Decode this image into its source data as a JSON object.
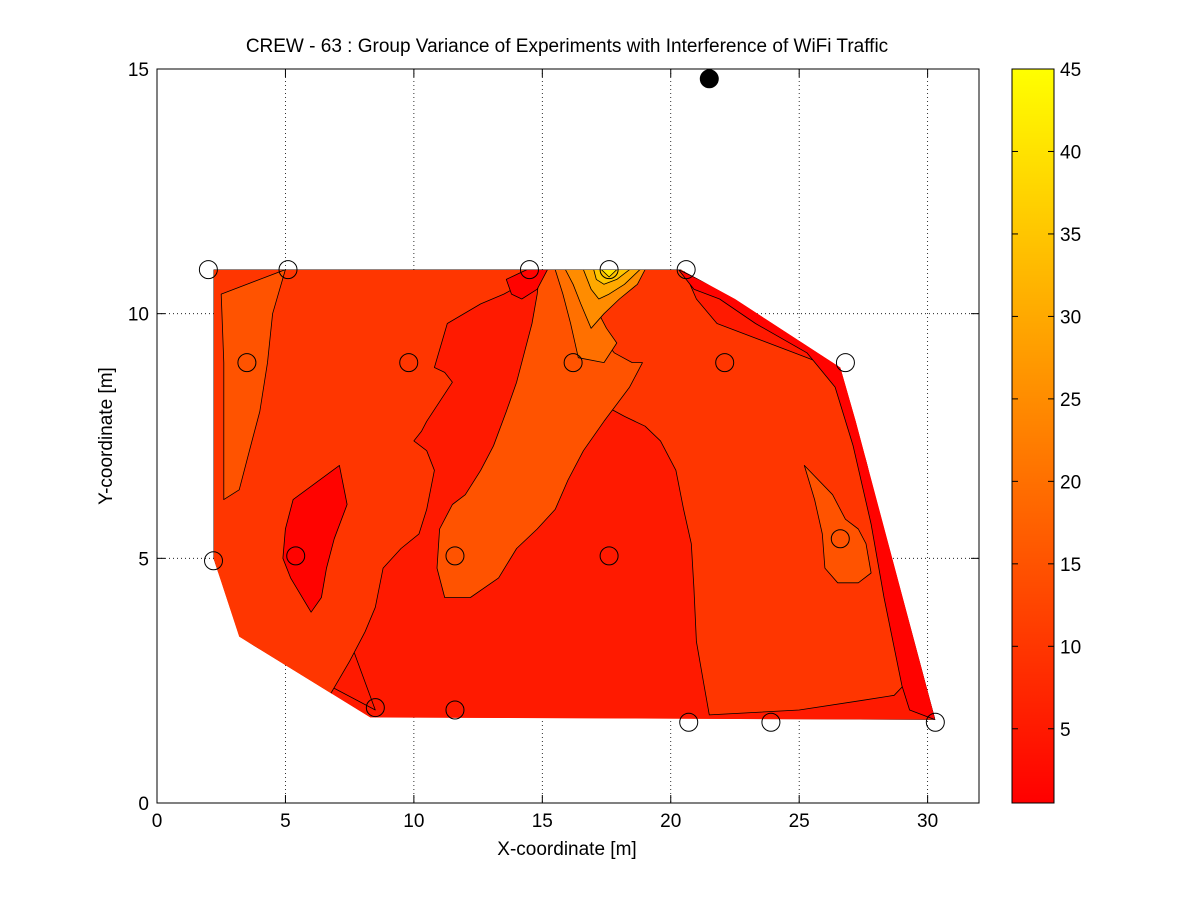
{
  "chart_data": {
    "type": "contour",
    "title": "CREW - 63 : Group Variance of Experiments with Interference of WiFi Traffic",
    "xlabel": "X-coordinate [m]",
    "ylabel": "Y-coordinate [m]",
    "xlim": [
      0,
      32
    ],
    "ylim": [
      0,
      15
    ],
    "xticks": [
      0,
      5,
      10,
      15,
      20,
      25,
      30
    ],
    "yticks": [
      0,
      5,
      10,
      15
    ],
    "grid": true,
    "colormap": "autumn",
    "colorbar": {
      "range": [
        0.5,
        45
      ],
      "ticks": [
        5,
        10,
        15,
        20,
        25,
        30,
        35,
        40,
        45
      ],
      "colors": {
        "low": "#ff0000",
        "high": "#ffff00"
      }
    },
    "sensor_nodes": [
      {
        "x": 2.0,
        "y": 10.9
      },
      {
        "x": 5.1,
        "y": 10.9
      },
      {
        "x": 14.5,
        "y": 10.9
      },
      {
        "x": 17.6,
        "y": 10.9
      },
      {
        "x": 20.6,
        "y": 10.9
      },
      {
        "x": 3.5,
        "y": 9.0
      },
      {
        "x": 9.8,
        "y": 9.0
      },
      {
        "x": 16.2,
        "y": 9.0
      },
      {
        "x": 22.1,
        "y": 9.0
      },
      {
        "x": 26.8,
        "y": 9.0
      },
      {
        "x": 2.2,
        "y": 4.95
      },
      {
        "x": 5.4,
        "y": 5.05
      },
      {
        "x": 11.6,
        "y": 5.05
      },
      {
        "x": 17.6,
        "y": 5.05
      },
      {
        "x": 26.6,
        "y": 5.4
      },
      {
        "x": 8.5,
        "y": 1.95
      },
      {
        "x": 11.6,
        "y": 1.9
      },
      {
        "x": 20.7,
        "y": 1.65
      },
      {
        "x": 23.9,
        "y": 1.65
      },
      {
        "x": 30.3,
        "y": 1.65
      }
    ],
    "interferer": {
      "x": 21.5,
      "y": 14.8
    },
    "regions": [
      {
        "value": 5,
        "points": [
          [
            2.2,
            10.9
          ],
          [
            20.3,
            10.9
          ],
          [
            22.5,
            10.2
          ],
          [
            26.6,
            8.8
          ],
          [
            27.2,
            7.7
          ],
          [
            30.3,
            1.7
          ],
          [
            2.2,
            1.7
          ],
          [
            2.2,
            5.0
          ],
          [
            3.1,
            3.4
          ],
          [
            8.5,
            1.9
          ]
        ]
      },
      {
        "value": 10,
        "points": [
          [
            2.2,
            10.9
          ],
          [
            14.6,
            10.9
          ],
          [
            14.2,
            10.6
          ],
          [
            13.5,
            10.4
          ],
          [
            12.6,
            10.2
          ],
          [
            11.3,
            9.8
          ],
          [
            10.8,
            8.9
          ],
          [
            11.2,
            8.8
          ],
          [
            11.5,
            8.6
          ],
          [
            10.5,
            7.8
          ],
          [
            10.3,
            7.6
          ],
          [
            10.0,
            7.4
          ],
          [
            10.5,
            7.2
          ],
          [
            10.8,
            6.8
          ],
          [
            10.5,
            6.0
          ],
          [
            10.2,
            5.5
          ],
          [
            9.5,
            5.2
          ],
          [
            8.8,
            4.8
          ],
          [
            8.5,
            4.0
          ],
          [
            8.1,
            3.5
          ],
          [
            7.5,
            2.9
          ],
          [
            6.5,
            2.0
          ],
          [
            5.0,
            1.8
          ],
          [
            2.2,
            1.8
          ],
          [
            2.2,
            5.0
          ]
        ]
      },
      {
        "value": 10,
        "points": [
          [
            15.8,
            10.9
          ],
          [
            20.5,
            10.9
          ],
          [
            21.0,
            10.3
          ],
          [
            21.8,
            9.8
          ],
          [
            23.3,
            9.5
          ],
          [
            24.8,
            9.2
          ],
          [
            26.8,
            8.8
          ],
          [
            27.4,
            7.6
          ],
          [
            27.8,
            6.5
          ],
          [
            28.4,
            5.3
          ],
          [
            29.0,
            4.0
          ],
          [
            29.6,
            2.7
          ],
          [
            28.7,
            2.2
          ],
          [
            27.5,
            2.1
          ],
          [
            25.0,
            1.9
          ],
          [
            21.5,
            1.8
          ],
          [
            21.3,
            2.4
          ],
          [
            21.0,
            3.3
          ],
          [
            20.9,
            4.4
          ],
          [
            20.8,
            5.3
          ],
          [
            20.5,
            6.0
          ],
          [
            20.2,
            6.8
          ],
          [
            19.6,
            7.4
          ],
          [
            19.0,
            7.7
          ],
          [
            18.2,
            7.9
          ],
          [
            17.5,
            8.1
          ],
          [
            16.9,
            8.4
          ],
          [
            16.4,
            8.9
          ],
          [
            16.0,
            9.6
          ],
          [
            15.8,
            10.2
          ]
        ]
      },
      {
        "value": 15,
        "points": [
          [
            2.5,
            10.4
          ],
          [
            5.0,
            10.9
          ],
          [
            4.5,
            10.0
          ],
          [
            4.3,
            9.0
          ],
          [
            4.0,
            8.0
          ],
          [
            3.7,
            7.4
          ],
          [
            3.2,
            6.4
          ],
          [
            2.6,
            6.2
          ],
          [
            2.6,
            7.5
          ],
          [
            2.6,
            9.0
          ]
        ]
      },
      {
        "value": 15,
        "points": [
          [
            14.9,
            10.9
          ],
          [
            16.1,
            10.9
          ],
          [
            16.5,
            10.4
          ],
          [
            17.2,
            9.6
          ],
          [
            17.8,
            9.2
          ],
          [
            18.5,
            9.0
          ],
          [
            18.9,
            9.0
          ],
          [
            18.4,
            8.5
          ],
          [
            17.4,
            7.8
          ],
          [
            16.6,
            7.2
          ],
          [
            16.0,
            6.6
          ],
          [
            15.5,
            6.0
          ],
          [
            14.8,
            5.6
          ],
          [
            14.0,
            5.2
          ],
          [
            13.3,
            4.6
          ],
          [
            12.2,
            4.2
          ],
          [
            11.2,
            4.2
          ],
          [
            10.9,
            4.8
          ],
          [
            11.0,
            5.6
          ],
          [
            11.5,
            6.1
          ],
          [
            12.0,
            6.3
          ],
          [
            12.6,
            6.8
          ],
          [
            13.1,
            7.3
          ],
          [
            13.6,
            8.0
          ],
          [
            14.0,
            8.6
          ],
          [
            14.3,
            9.2
          ],
          [
            14.6,
            9.8
          ],
          [
            14.8,
            10.4
          ]
        ]
      },
      {
        "value": 15,
        "points": [
          [
            25.2,
            6.9
          ],
          [
            26.3,
            6.3
          ],
          [
            26.8,
            5.8
          ],
          [
            27.3,
            5.6
          ],
          [
            27.6,
            5.3
          ],
          [
            27.8,
            4.7
          ],
          [
            27.3,
            4.5
          ],
          [
            26.5,
            4.5
          ],
          [
            26.0,
            4.8
          ],
          [
            25.9,
            5.5
          ],
          [
            25.6,
            6.2
          ]
        ]
      },
      {
        "value": 20,
        "points": [
          [
            15.5,
            10.9
          ],
          [
            16.4,
            10.9
          ],
          [
            17.0,
            10.2
          ],
          [
            17.5,
            9.7
          ],
          [
            17.9,
            9.4
          ],
          [
            17.4,
            9.0
          ],
          [
            16.4,
            9.1
          ],
          [
            16.1,
            9.8
          ],
          [
            15.8,
            10.4
          ]
        ]
      },
      {
        "value": 25,
        "points": [
          [
            15.9,
            10.9
          ],
          [
            19.0,
            10.9
          ],
          [
            18.7,
            10.6
          ],
          [
            18.0,
            10.3
          ],
          [
            17.4,
            10.0
          ],
          [
            16.9,
            9.7
          ],
          [
            16.5,
            10.2
          ],
          [
            16.2,
            10.6
          ]
        ]
      },
      {
        "value": 30,
        "points": [
          [
            16.6,
            10.9
          ],
          [
            18.8,
            10.9
          ],
          [
            18.2,
            10.6
          ],
          [
            17.6,
            10.4
          ],
          [
            17.2,
            10.3
          ],
          [
            16.9,
            10.5
          ]
        ]
      },
      {
        "value": 35,
        "points": [
          [
            17.0,
            10.9
          ],
          [
            18.4,
            10.9
          ],
          [
            17.9,
            10.7
          ],
          [
            17.4,
            10.6
          ],
          [
            17.1,
            10.7
          ]
        ]
      },
      {
        "value": 40,
        "points": [
          [
            17.3,
            10.9
          ],
          [
            17.9,
            10.9
          ],
          [
            17.6,
            10.75
          ]
        ]
      },
      {
        "value": 1,
        "points": [
          [
            5.3,
            6.2
          ],
          [
            7.1,
            6.9
          ],
          [
            7.4,
            6.1
          ],
          [
            6.9,
            5.4
          ],
          [
            6.6,
            4.8
          ],
          [
            6.4,
            4.2
          ],
          [
            6.0,
            3.9
          ],
          [
            5.2,
            4.6
          ],
          [
            4.9,
            5.0
          ],
          [
            5.0,
            5.6
          ]
        ]
      },
      {
        "value": 1,
        "points": [
          [
            20.3,
            10.9
          ],
          [
            22.3,
            10.4
          ],
          [
            24.4,
            9.9
          ],
          [
            26.3,
            9.3
          ],
          [
            26.9,
            8.8
          ],
          [
            27.3,
            7.9
          ],
          [
            27.8,
            6.7
          ],
          [
            28.5,
            5.4
          ],
          [
            29.2,
            4.0
          ],
          [
            29.9,
            2.6
          ],
          [
            30.3,
            1.7
          ],
          [
            29.3,
            1.9
          ],
          [
            29.0,
            2.4
          ],
          [
            28.3,
            4.2
          ],
          [
            27.8,
            5.7
          ],
          [
            27.1,
            7.3
          ],
          [
            26.4,
            8.5
          ],
          [
            25.3,
            9.2
          ],
          [
            23.3,
            9.8
          ],
          [
            21.9,
            10.3
          ],
          [
            20.9,
            10.5
          ]
        ]
      },
      {
        "value": 1,
        "points": [
          [
            13.6,
            10.7
          ],
          [
            14.4,
            10.9
          ],
          [
            15.2,
            10.9
          ],
          [
            14.8,
            10.5
          ],
          [
            14.2,
            10.3
          ],
          [
            13.8,
            10.4
          ]
        ]
      }
    ]
  }
}
